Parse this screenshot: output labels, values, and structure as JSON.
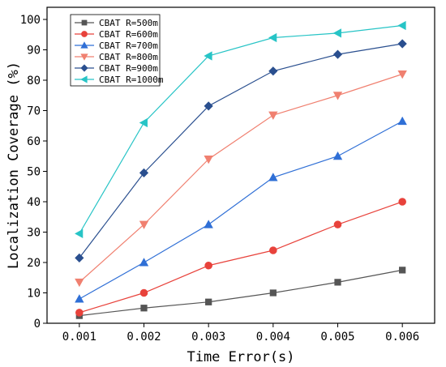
{
  "chart_data": {
    "type": "line",
    "xlabel": "Time Error(s)",
    "ylabel": "Localization Coverage  (%)",
    "x": [
      0.001,
      0.002,
      0.003,
      0.004,
      0.005,
      0.006
    ],
    "x_tick_labels": [
      "0.001",
      "0.002",
      "0.003",
      "0.004",
      "0.005",
      "0.006"
    ],
    "xlim": [
      0.0005,
      0.0065
    ],
    "ylim": [
      0,
      104
    ],
    "y_ticks": [
      0,
      10,
      20,
      30,
      40,
      50,
      60,
      70,
      80,
      90,
      100
    ],
    "grid": false,
    "legend_position": "top-left",
    "series": [
      {
        "name": "CBAT R=500m",
        "color": "#555555",
        "marker": "square",
        "values": [
          2.5,
          5,
          7,
          10,
          13.5,
          17.5
        ]
      },
      {
        "name": "CBAT R=600m",
        "color": "#e8423b",
        "marker": "circle",
        "values": [
          3.5,
          10,
          19,
          24,
          32.5,
          40
        ]
      },
      {
        "name": "CBAT R=700m",
        "color": "#2f6fd6",
        "marker": "triangle-up",
        "values": [
          8,
          20,
          32.5,
          48,
          55,
          66.5
        ]
      },
      {
        "name": "CBAT R=800m",
        "color": "#f08070",
        "marker": "triangle-down",
        "values": [
          13.5,
          32.5,
          54,
          68.5,
          75,
          82
        ]
      },
      {
        "name": "CBAT R=900m",
        "color": "#2a4f8f",
        "marker": "diamond",
        "values": [
          21.5,
          49.5,
          71.5,
          83,
          88.5,
          92
        ]
      },
      {
        "name": "CBAT R=1000m",
        "color": "#27c4c6",
        "marker": "triangle-left",
        "values": [
          29.5,
          66,
          88,
          94,
          95.5,
          98
        ]
      }
    ]
  }
}
